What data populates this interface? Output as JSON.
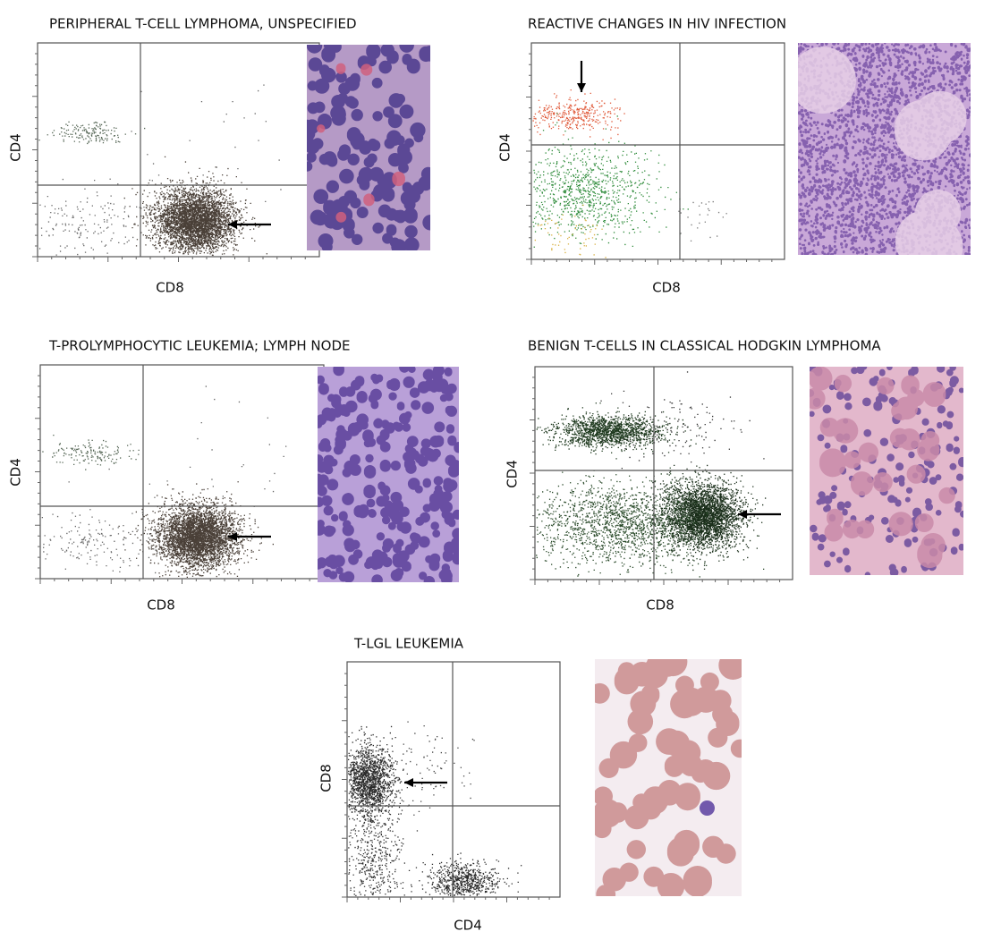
{
  "panels": [
    {
      "title": "PERIPHERAL T-CELL LYMPHOMA, UNSPECIFIED",
      "x_label": "CD8",
      "y_label": "CD4"
    },
    {
      "title": "REACTIVE CHANGES IN HIV INFECTION",
      "x_label": "CD8",
      "y_label": "CD4"
    },
    {
      "title": "T-PROLYMPHOCYTIC LEUKEMIA; LYMPH NODE",
      "x_label": "CD8",
      "y_label": "CD4"
    },
    {
      "title": "BENIGN T-CELLS IN CLASSICAL HODGKIN LYMPHOMA",
      "x_label": "CD8",
      "y_label": "CD4"
    },
    {
      "title": "T-LGL LEUKEMIA",
      "x_label": "CD4",
      "y_label": "CD8"
    }
  ]
}
